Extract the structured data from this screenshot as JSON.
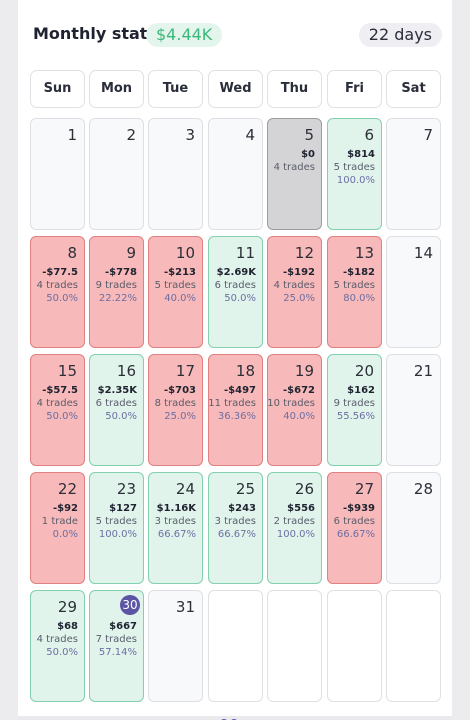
{
  "header": {
    "title": "Monthly stats:",
    "total_pnl": "$4.44K",
    "days": "22 days"
  },
  "weekdays": [
    "Sun",
    "Mon",
    "Tue",
    "Wed",
    "Thu",
    "Fri",
    "Sat"
  ],
  "colors": {
    "loss": "#f7b9b9",
    "gain": "#e0f4ec",
    "flat": "#d4d4d6",
    "today": "#5b55a3"
  },
  "days": [
    {
      "day": "1",
      "state": "none"
    },
    {
      "day": "2",
      "state": "none"
    },
    {
      "day": "3",
      "state": "none"
    },
    {
      "day": "4",
      "state": "none"
    },
    {
      "day": "5",
      "state": "flat",
      "pnl": "$0",
      "trades": "4 trades"
    },
    {
      "day": "6",
      "state": "gain",
      "pnl": "$814",
      "trades": "5 trades",
      "winrate": "100.0%"
    },
    {
      "day": "7",
      "state": "none"
    },
    {
      "day": "8",
      "state": "loss",
      "pnl": "-$77.5",
      "trades": "4 trades",
      "winrate": "50.0%"
    },
    {
      "day": "9",
      "state": "loss",
      "pnl": "-$778",
      "trades": "9 trades",
      "winrate": "22.22%"
    },
    {
      "day": "10",
      "state": "loss",
      "pnl": "-$213",
      "trades": "5 trades",
      "winrate": "40.0%"
    },
    {
      "day": "11",
      "state": "gain",
      "pnl": "$2.69K",
      "trades": "6 trades",
      "winrate": "50.0%"
    },
    {
      "day": "12",
      "state": "loss",
      "pnl": "-$192",
      "trades": "4 trades",
      "winrate": "25.0%"
    },
    {
      "day": "13",
      "state": "loss",
      "pnl": "-$182",
      "trades": "5 trades",
      "winrate": "80.0%"
    },
    {
      "day": "14",
      "state": "none"
    },
    {
      "day": "15",
      "state": "loss",
      "pnl": "-$57.5",
      "trades": "4 trades",
      "winrate": "50.0%"
    },
    {
      "day": "16",
      "state": "gain",
      "pnl": "$2.35K",
      "trades": "6 trades",
      "winrate": "50.0%"
    },
    {
      "day": "17",
      "state": "loss",
      "pnl": "-$703",
      "trades": "8 trades",
      "winrate": "25.0%"
    },
    {
      "day": "18",
      "state": "loss",
      "pnl": "-$497",
      "trades": "11 trades",
      "winrate": "36.36%"
    },
    {
      "day": "19",
      "state": "loss",
      "pnl": "-$672",
      "trades": "10 trades",
      "winrate": "40.0%"
    },
    {
      "day": "20",
      "state": "gain",
      "pnl": "$162",
      "trades": "9 trades",
      "winrate": "55.56%"
    },
    {
      "day": "21",
      "state": "none"
    },
    {
      "day": "22",
      "state": "loss",
      "pnl": "-$92",
      "trades": "1 trade",
      "winrate": "0.0%"
    },
    {
      "day": "23",
      "state": "gain",
      "pnl": "$127",
      "trades": "5 trades",
      "winrate": "100.0%"
    },
    {
      "day": "24",
      "state": "gain",
      "pnl": "$1.16K",
      "trades": "3 trades",
      "winrate": "66.67%"
    },
    {
      "day": "25",
      "state": "gain",
      "pnl": "$243",
      "trades": "3 trades",
      "winrate": "66.67%"
    },
    {
      "day": "26",
      "state": "gain",
      "pnl": "$556",
      "trades": "2 trades",
      "winrate": "100.0%"
    },
    {
      "day": "27",
      "state": "loss",
      "pnl": "-$939",
      "trades": "6 trades",
      "winrate": "66.67%"
    },
    {
      "day": "28",
      "state": "none"
    },
    {
      "day": "29",
      "state": "gain",
      "pnl": "$68",
      "trades": "4 trades",
      "winrate": "50.0%"
    },
    {
      "day": "30",
      "state": "gain",
      "pnl": "$667",
      "trades": "7 trades",
      "winrate": "57.14%",
      "today": true
    },
    {
      "day": "31",
      "state": "none"
    },
    {
      "day": "",
      "state": "empty"
    },
    {
      "day": "",
      "state": "empty"
    },
    {
      "day": "",
      "state": "empty"
    },
    {
      "day": "",
      "state": "empty"
    }
  ]
}
